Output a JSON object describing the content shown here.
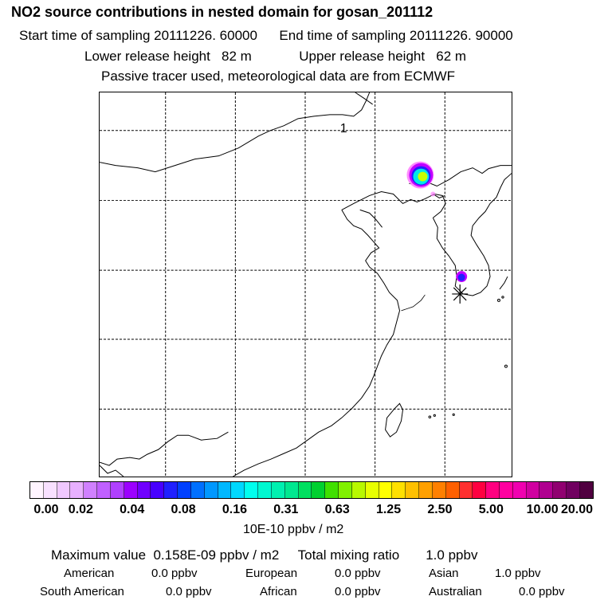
{
  "header": {
    "title": "NO2 source contributions in nested domain for gosan_201112",
    "start_label": "Start time of sampling 20111226. 60000",
    "end_label": "End time of sampling 20111226. 90000",
    "lower_label": "Lower release height   82 m",
    "upper_label": "Upper release height   62 m",
    "note": "Passive tracer used, meteorological data are from ECMWF"
  },
  "map": {
    "label_1": "1",
    "colors": {
      "plume_outer": "#c000ff",
      "plume_mid": "#ff80ff",
      "plume_core_a": "#00e8e8",
      "plume_core_b": "#c8ff00",
      "station_marker": "#000000"
    }
  },
  "colorbar": {
    "ticks": [
      "0.00",
      "0.02",
      "0.04",
      "0.08",
      "0.16",
      "0.31",
      "0.63",
      "1.25",
      "2.50",
      "5.00",
      "10.00",
      "20.00"
    ],
    "colors": [
      "#fff4ff",
      "#f8e0ff",
      "#f0c8ff",
      "#e8b0ff",
      "#d080ff",
      "#c060ff",
      "#b040ff",
      "#9c00ff",
      "#7000ff",
      "#4800ff",
      "#2020ff",
      "#0040ff",
      "#0070ff",
      "#0098ff",
      "#00b8ff",
      "#00d8ff",
      "#00ffee",
      "#00f8d0",
      "#00f0b0",
      "#00e890",
      "#00e060",
      "#00d030",
      "#40e000",
      "#80f000",
      "#b8f800",
      "#e8ff00",
      "#ffff00",
      "#ffe000",
      "#ffc000",
      "#ffa000",
      "#ff8000",
      "#ff6000",
      "#ff3030",
      "#ff0040",
      "#ff0080",
      "#ff00a0",
      "#f000b0",
      "#d000a0",
      "#b00090",
      "#900070",
      "#700060",
      "#500040"
    ],
    "units": "10E-10 ppbv / m2"
  },
  "summary": {
    "max_line": "Maximum value  0.158E-09 ppbv / m2     Total mixing ratio       1.0 ppbv",
    "sources": [
      {
        "name": "American",
        "value": "0.0 ppbv"
      },
      {
        "name": "European",
        "value": "0.0 ppbv"
      },
      {
        "name": "Asian",
        "value": "1.0 ppbv"
      },
      {
        "name": "South American",
        "value": "0.0 ppbv"
      },
      {
        "name": "African",
        "value": "0.0 ppbv"
      },
      {
        "name": "Australian",
        "value": "0.0 ppbv"
      }
    ]
  }
}
